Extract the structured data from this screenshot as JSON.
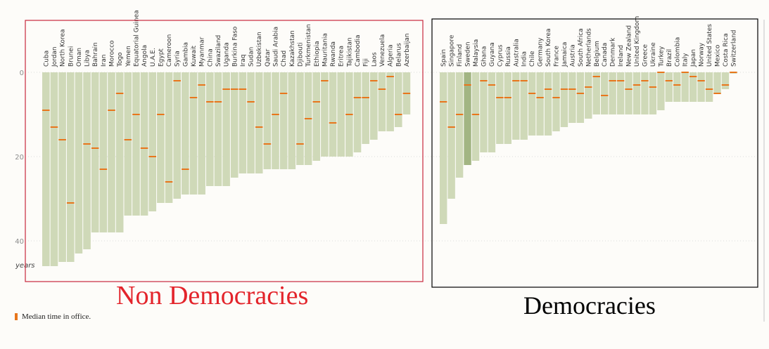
{
  "captions": {
    "non_democracies": "Non Democracies",
    "democracies": "Democracies"
  },
  "legend": {
    "median_label": "Median time in office."
  },
  "colors": {
    "bar": "#cfd9b8",
    "bar_highlight": "#a2b583",
    "median": "#e8761c",
    "frame_left": "#c8283c",
    "frame_right": "#000000",
    "caption_left": "#e3242b",
    "axis_text": "#8c8c8c"
  },
  "chart_data": [
    {
      "type": "bar",
      "categories": [
        "Cuba",
        "Jordan",
        "North Korea",
        "Brunei",
        "Oman",
        "Libya",
        "Bahrain",
        "Iran",
        "Morocco",
        "Togo",
        "Yemen",
        "Equatorial Guinea",
        "Angola",
        "U.A.E.",
        "Egypt",
        "Cameroon",
        "Syria",
        "Gambia",
        "Kuwait",
        "Myanmar",
        "China",
        "Swaziland",
        "Uganda",
        "Burkina Faso",
        "Iraq",
        "Sudan",
        "Uzbekistan",
        "Qatar",
        "Saudi Arabia",
        "Chad",
        "Kazakhstan",
        "Djibouti",
        "Turkmenistan",
        "Ethiopia",
        "Mauritania",
        "Rwanda",
        "Eritrea",
        "Tajikistan",
        "Cambodia",
        "Fiji",
        "Laos",
        "Venezuela",
        "Algeria",
        "Belarus",
        "Azerbaijan"
      ],
      "series": [
        {
          "values": [
            46,
            46,
            45,
            45,
            43,
            42,
            38,
            38,
            38,
            38,
            34,
            34,
            34,
            33,
            31,
            31,
            30,
            29,
            29,
            29,
            27,
            27,
            27,
            25,
            24,
            24,
            24,
            23,
            23,
            23,
            23,
            22,
            22,
            21,
            20,
            20,
            20,
            20,
            19,
            17,
            16,
            14,
            14,
            13,
            10
          ]
        },
        {
          "values": [
            9,
            13,
            16,
            31,
            null,
            17,
            18,
            23,
            9,
            5,
            16,
            10,
            18,
            20,
            10,
            26,
            2,
            23,
            6,
            3,
            7,
            7,
            4,
            4,
            4,
            7,
            13,
            17,
            10,
            5,
            null,
            17,
            11,
            7,
            2,
            12,
            null,
            10,
            6,
            6,
            2,
            4,
            1,
            10,
            5
          ]
        }
      ],
      "yticks": [
        0,
        20,
        40
      ],
      "ylabel": "years",
      "ylim": [
        0,
        48
      ]
    },
    {
      "type": "bar",
      "categories": [
        "Spain",
        "Singapore",
        "Finland",
        "Sweden",
        "Malaysia",
        "Ghana",
        "Guyana",
        "Cyprus",
        "Russia",
        "Australia",
        "India",
        "Chile",
        "Germany",
        "South Korea",
        "France",
        "Jamaica",
        "Austria",
        "South Africa",
        "Netherlands",
        "Belgium",
        "Canada",
        "Denmark",
        "Ireland",
        "New Zealand",
        "United Kingdom",
        "Greece",
        "Ukraine",
        "Turkey",
        "Brazil",
        "Colombia",
        "Italy",
        "Japan",
        "Norway",
        "United States",
        "Mexico",
        "Costa Rica",
        "Switzerland"
      ],
      "series": [
        {
          "values": [
            36,
            30,
            25,
            22,
            21,
            19,
            19,
            17,
            17,
            16,
            16,
            15,
            15,
            15,
            14,
            13,
            12,
            12,
            11,
            10,
            10,
            10,
            10,
            10,
            10,
            10,
            10,
            9,
            7,
            7,
            7,
            7,
            7,
            7,
            5,
            4,
            0.3
          ]
        },
        {
          "values": [
            7,
            13,
            10,
            3,
            10,
            2,
            3,
            6,
            6,
            2,
            2,
            5,
            6,
            4,
            6,
            4,
            4,
            5,
            3.5,
            1,
            5.5,
            2,
            2,
            4,
            3,
            2,
            3.5,
            0,
            2,
            3,
            0,
            1,
            2,
            4,
            5,
            3,
            0
          ]
        }
      ],
      "highlight": "Sweden"
    }
  ]
}
